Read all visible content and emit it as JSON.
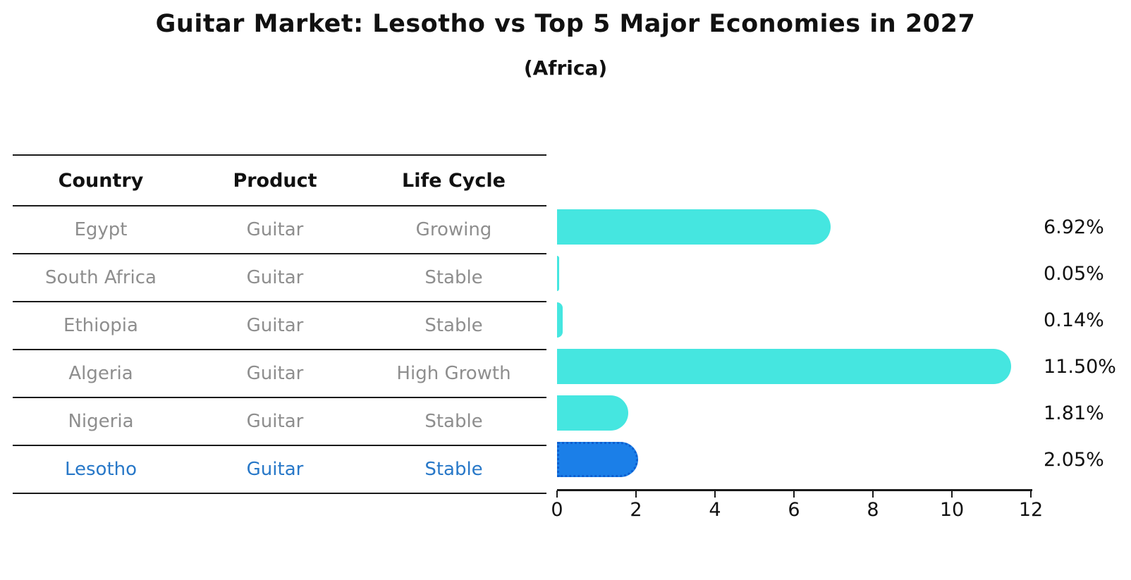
{
  "title": "Guitar Market: Lesotho vs Top 5 Major Economies in 2027",
  "subtitle": "(Africa)",
  "table": {
    "headers": [
      "Country",
      "Product",
      "Life Cycle"
    ],
    "rows": [
      {
        "country": "Egypt",
        "product": "Guitar",
        "life_cycle": "Growing",
        "highlight": false
      },
      {
        "country": "South Africa",
        "product": "Guitar",
        "life_cycle": "Stable",
        "highlight": false
      },
      {
        "country": "Ethiopia",
        "product": "Guitar",
        "life_cycle": "Stable",
        "highlight": false
      },
      {
        "country": "Algeria",
        "product": "Guitar",
        "life_cycle": "High Growth",
        "highlight": false
      },
      {
        "country": "Nigeria",
        "product": "Guitar",
        "life_cycle": "Stable",
        "highlight": false
      },
      {
        "country": "Lesotho",
        "product": "Guitar",
        "life_cycle": "Stable",
        "highlight": true
      }
    ]
  },
  "chart_data": {
    "type": "bar",
    "orientation": "horizontal",
    "title": "Guitar Market: Lesotho vs Top 5 Major Economies in 2027",
    "subtitle": "(Africa)",
    "categories": [
      "Egypt",
      "South Africa",
      "Ethiopia",
      "Algeria",
      "Nigeria",
      "Lesotho"
    ],
    "values": [
      6.92,
      0.05,
      0.14,
      11.5,
      1.81,
      2.05
    ],
    "value_labels": [
      "6.92%",
      "0.05%",
      "0.14%",
      "11.50%",
      "1.81%",
      "2.05%"
    ],
    "xlim": [
      0,
      12
    ],
    "x_ticks": [
      "0",
      "2",
      "4",
      "6",
      "8",
      "10",
      "12"
    ],
    "grid": false,
    "legend": false,
    "bar_color": "#45E6E0",
    "highlight_bar_color": "#1B7FE8",
    "highlight_bar_edge_color": "#0D5ECF",
    "highlight_index": 5
  },
  "colors": {
    "background": "#ffffff",
    "text_primary": "#111111",
    "table_text": "#8e8e8e",
    "highlight_text": "#2878C8",
    "rule_line": "#1a1a1a"
  }
}
